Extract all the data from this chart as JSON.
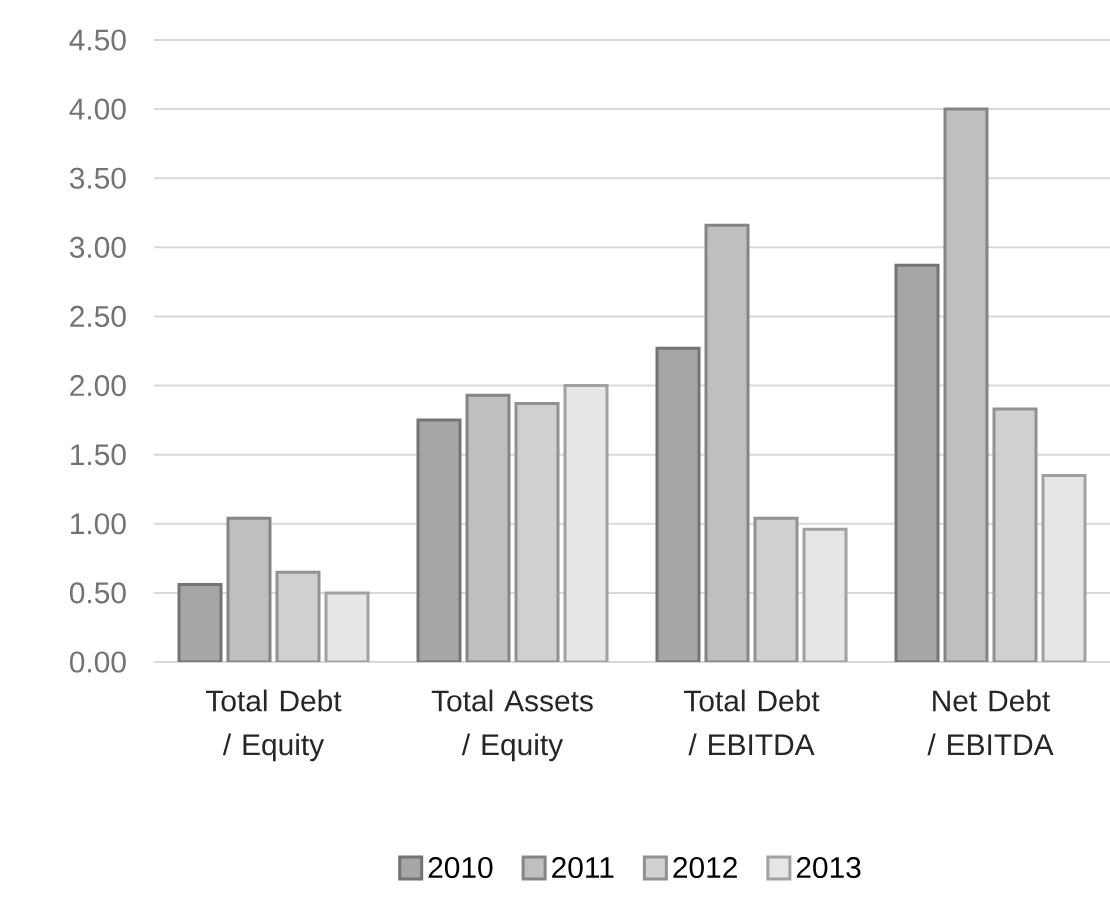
{
  "chart_data": {
    "type": "bar",
    "categories": [
      "Total Debt / Equity",
      "Total Assets / Equity",
      "Total Debt / EBITDA",
      "Net Debt / EBITDA"
    ],
    "series": [
      {
        "name": "2010",
        "color": "#a6a6a6",
        "values": [
          0.56,
          1.75,
          2.27,
          2.87
        ]
      },
      {
        "name": "2011",
        "color": "#bfbfbf",
        "values": [
          1.04,
          1.93,
          3.16,
          4.0
        ]
      },
      {
        "name": "2012",
        "color": "#d0d0d0",
        "values": [
          0.65,
          1.87,
          1.04,
          1.83
        ]
      },
      {
        "name": "2013",
        "color": "#e6e6e6",
        "values": [
          0.5,
          2.0,
          0.96,
          1.35
        ]
      }
    ],
    "ylim": [
      0,
      4.5
    ],
    "yticks": [
      {
        "value": 0,
        "label": "0.00"
      },
      {
        "value": 0.5,
        "label": "0.50"
      },
      {
        "value": 1,
        "label": "1.00"
      },
      {
        "value": 1.5,
        "label": "1.50"
      },
      {
        "value": 2,
        "label": "2.00"
      },
      {
        "value": 2.5,
        "label": "2.50"
      },
      {
        "value": 3,
        "label": "3.00"
      },
      {
        "value": 3.5,
        "label": "3.50"
      },
      {
        "value": 4,
        "label": "4.00"
      },
      {
        "value": 4.5,
        "label": "4.50"
      }
    ],
    "grid": "y",
    "legend": "bottom"
  }
}
